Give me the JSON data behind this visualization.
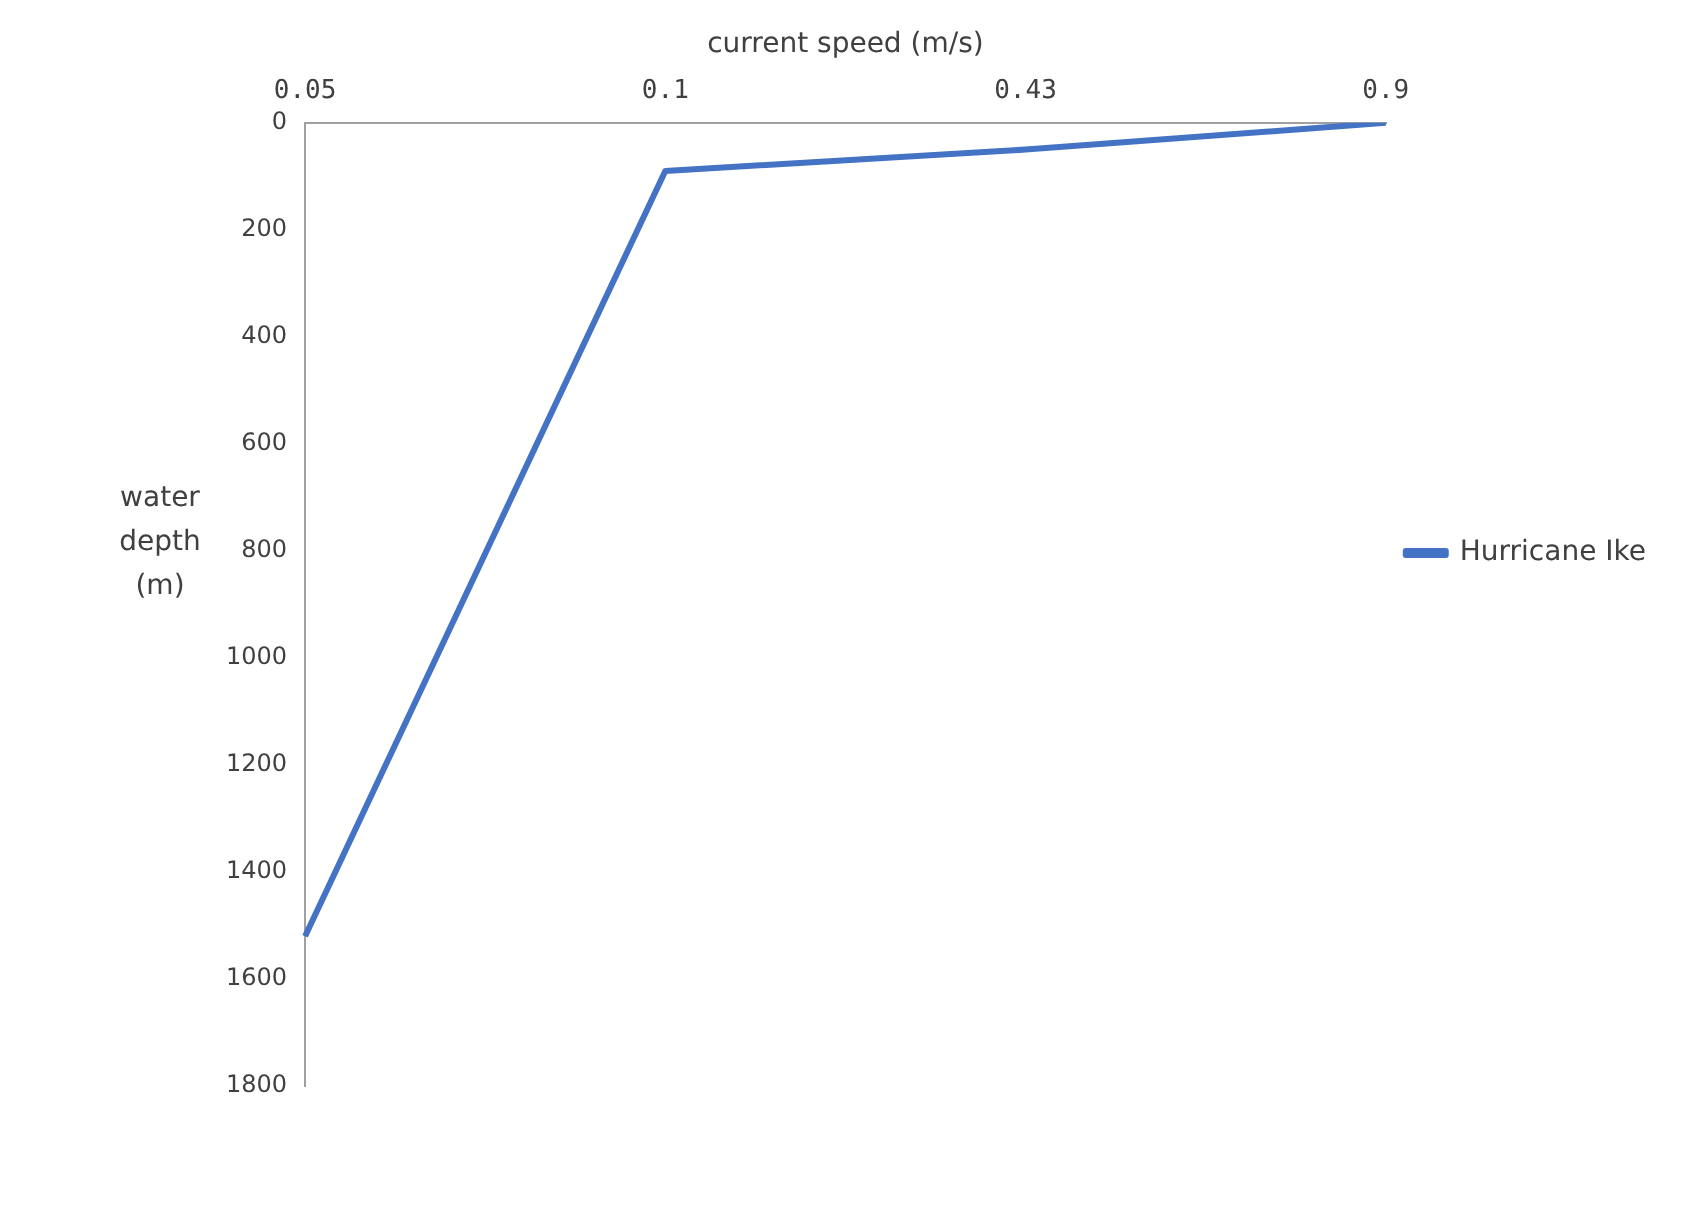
{
  "chart_data": {
    "type": "line",
    "xlabel": "current speed (m/s)",
    "ylabel": "water depth (m)",
    "categories": [
      "0.05",
      "0.1",
      "0.43",
      "0.9"
    ],
    "series": [
      {
        "name": "Hurricane Ike",
        "color": "#4472c4",
        "values": [
          1520,
          90,
          50,
          0
        ]
      }
    ],
    "ylim": [
      1800,
      0
    ],
    "yticks": [
      0,
      200,
      400,
      600,
      800,
      1000,
      1200,
      1400,
      1600,
      1800
    ],
    "grid": false,
    "legend": "right",
    "marker": "none"
  }
}
